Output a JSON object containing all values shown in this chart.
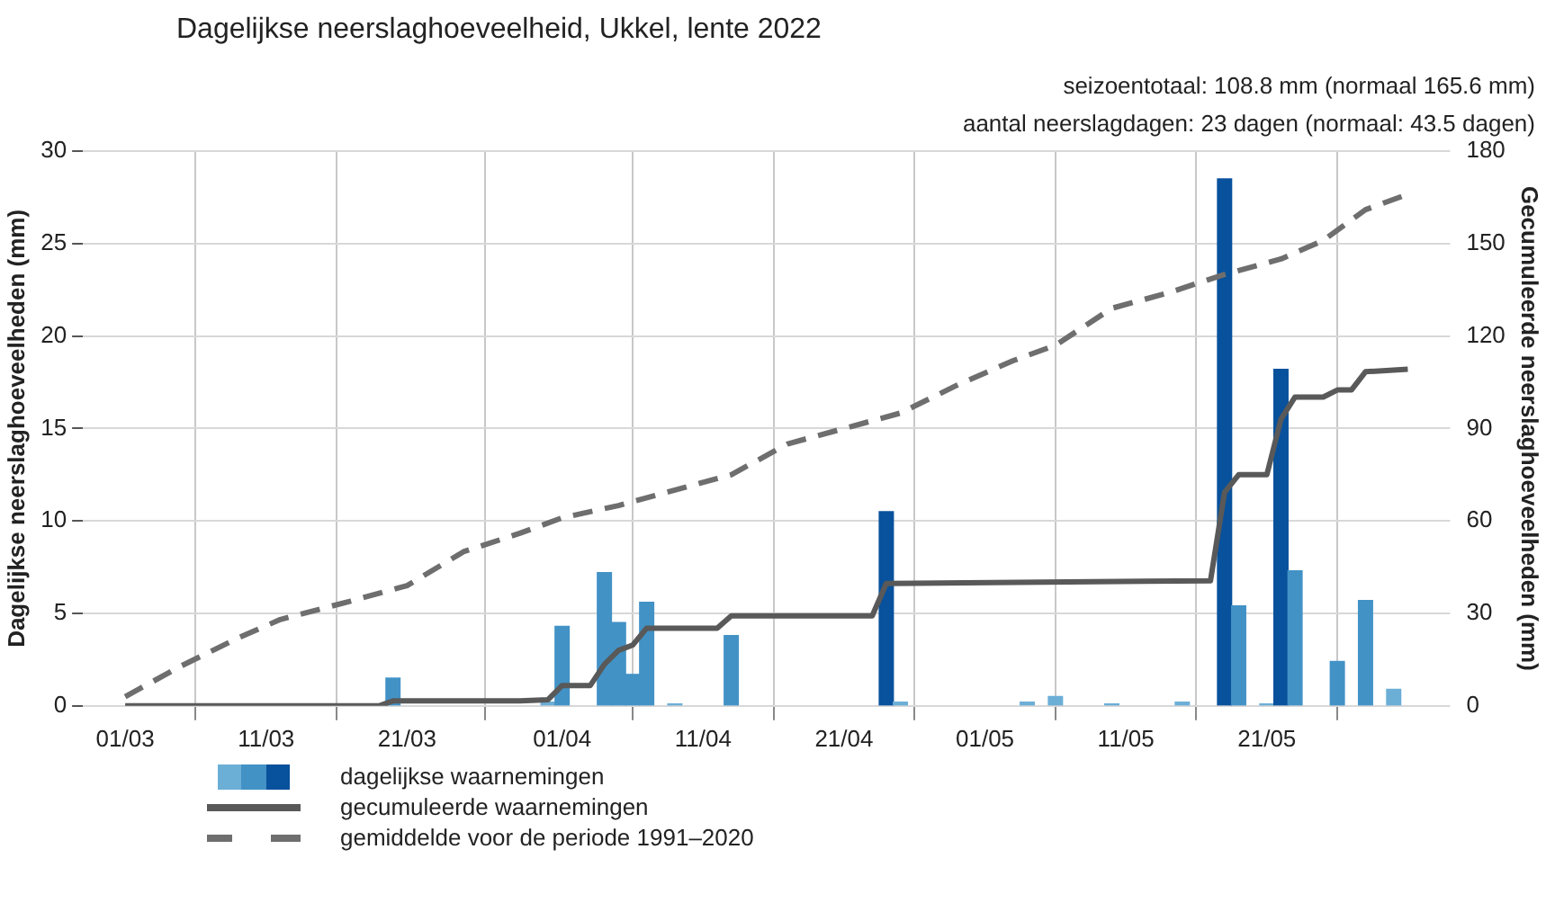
{
  "chart_data": {
    "type": "bar",
    "title": "Dagelijkse neerslaghoeveelheid, Ukkel, lente 2022",
    "annotations": [
      "seizoentotaal: 108.8 mm (normaal 165.6 mm)",
      "aantal neerslagdagen: 23 dagen (normaal: 43.5 dagen)"
    ],
    "ylabel": "Dagelijkse neerslaghoeveelheden (mm)",
    "y2label": "Gecumuleerde neerslaghoeveelheden (mm)",
    "xlim": [
      "2022-02-26",
      "2022-06-03"
    ],
    "xticks": [
      {
        "value": "2022-03-01",
        "label": "01/03"
      },
      {
        "value": "2022-03-11",
        "label": "11/03"
      },
      {
        "value": "2022-03-21",
        "label": "21/03"
      },
      {
        "value": "2022-04-01",
        "label": "01/04"
      },
      {
        "value": "2022-04-11",
        "label": "11/04"
      },
      {
        "value": "2022-04-21",
        "label": "21/04"
      },
      {
        "value": "2022-05-01",
        "label": "01/05"
      },
      {
        "value": "2022-05-11",
        "label": "11/05"
      },
      {
        "value": "2022-05-21",
        "label": "21/05"
      }
    ],
    "ylim": [
      0,
      30
    ],
    "yticks": [
      0,
      5,
      10,
      15,
      20,
      25,
      30
    ],
    "y2lim": [
      0,
      180
    ],
    "y2ticks": [
      0,
      30,
      60,
      90,
      120,
      150,
      180
    ],
    "grid": true,
    "legend": "bottom",
    "series": [
      {
        "name": "dagelijkse waarnemingen",
        "x": [
          "2022-03-20",
          "2022-03-30",
          "2022-03-31",
          "2022-04-01",
          "2022-04-04",
          "2022-04-05",
          "2022-04-06",
          "2022-04-07",
          "2022-04-09",
          "2022-04-13",
          "2022-04-24",
          "2022-04-25",
          "2022-05-04",
          "2022-05-06",
          "2022-05-10",
          "2022-05-15",
          "2022-05-18",
          "2022-05-19",
          "2022-05-21",
          "2022-05-22",
          "2022-05-23",
          "2022-05-26",
          "2022-05-28",
          "2022-05-30"
        ],
        "values": [
          1.5,
          null,
          0.2,
          4.3,
          7.2,
          4.5,
          1.7,
          5.6,
          0.1,
          3.8,
          10.5,
          0.2,
          0.2,
          0.5,
          0.1,
          0.2,
          28.5,
          5.4,
          0.1,
          18.2,
          7.3,
          2.4,
          5.7,
          0.9
        ],
        "colors": [
          "#4292c6",
          "#6baed6",
          "#6baed6",
          "#4292c6",
          "#4292c6",
          "#4292c6",
          "#4292c6",
          "#4292c6",
          "#6baed6",
          "#4292c6",
          "#08519c",
          "#6baed6",
          "#6baed6",
          "#6baed6",
          "#6baed6",
          "#6baed6",
          "#08519c",
          "#4292c6",
          "#6baed6",
          "#08519c",
          "#4292c6",
          "#4292c6",
          "#4292c6",
          "#6baed6"
        ]
      },
      {
        "name": "gecumuleerde waarnemingen",
        "type": "line",
        "axis": "y2",
        "color": "#595959",
        "line_style": "solid",
        "x": [
          "2022-03-01",
          "2022-03-19",
          "2022-03-20",
          "2022-03-29",
          "2022-03-31",
          "2022-04-01",
          "2022-04-03",
          "2022-04-04",
          "2022-04-05",
          "2022-04-06",
          "2022-04-07",
          "2022-04-12",
          "2022-04-13",
          "2022-04-23",
          "2022-04-24",
          "2022-05-17",
          "2022-05-18",
          "2022-05-19",
          "2022-05-21",
          "2022-05-22",
          "2022-05-23",
          "2022-05-25",
          "2022-05-26",
          "2022-05-27",
          "2022-05-28",
          "2022-05-31"
        ],
        "values": [
          0,
          0,
          1.6,
          1.6,
          2,
          6.6,
          6.6,
          13.5,
          18,
          19.7,
          25.2,
          25.2,
          29.2,
          29.2,
          39.7,
          40.6,
          69.3,
          75,
          75,
          93,
          100.2,
          100.2,
          102.5,
          102.5,
          108.4,
          109.2
        ]
      },
      {
        "name": "gemiddelde voor de periode 1991–2020",
        "type": "line",
        "axis": "y2",
        "color": "#6e6e6e",
        "line_style": "dashed",
        "x": [
          "2022-03-01",
          "2022-03-05",
          "2022-03-09",
          "2022-03-12",
          "2022-03-17",
          "2022-03-21",
          "2022-03-25",
          "2022-03-29",
          "2022-04-01",
          "2022-04-05",
          "2022-04-09",
          "2022-04-13",
          "2022-04-17",
          "2022-04-21",
          "2022-04-25",
          "2022-04-29",
          "2022-05-03",
          "2022-05-06",
          "2022-05-10",
          "2022-05-14",
          "2022-05-18",
          "2022-05-22",
          "2022-05-25",
          "2022-05-28",
          "2022-05-31"
        ],
        "values": [
          3,
          13,
          22,
          28,
          34,
          39,
          50,
          56,
          61,
          65,
          70,
          75,
          85,
          90,
          95,
          104,
          112,
          117,
          129,
          134,
          140,
          145,
          151,
          161,
          166
        ]
      }
    ]
  }
}
